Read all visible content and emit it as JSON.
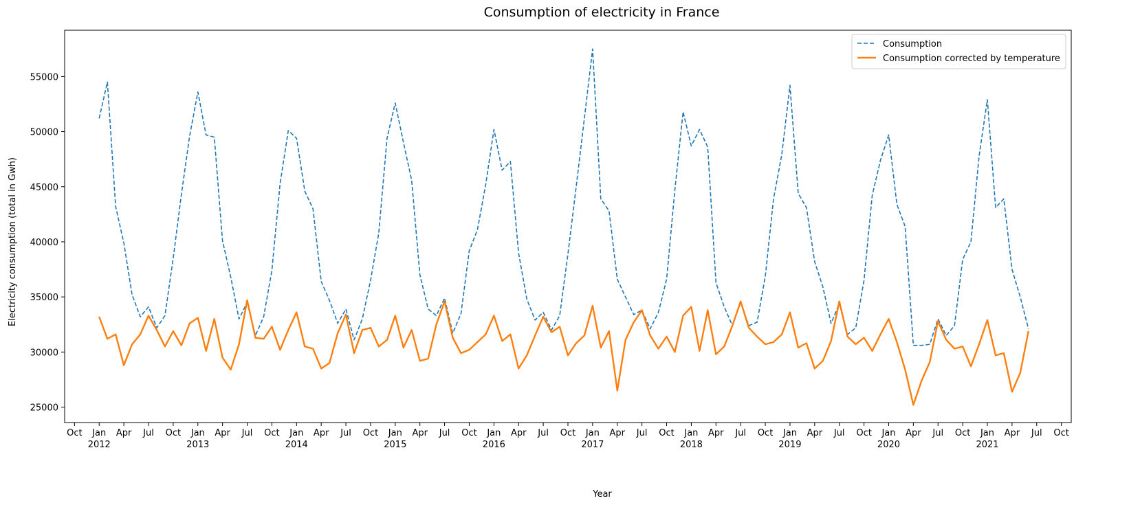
{
  "chart_data": {
    "type": "line",
    "title": "Consumption of electricity in France",
    "xlabel": "Year",
    "ylabel": "Electricity consumption (total in Gwh)",
    "ylim": [
      23600,
      59200
    ],
    "xlim": [
      "2011-10",
      "2021-10"
    ],
    "yticks": [
      25000,
      30000,
      35000,
      40000,
      45000,
      50000,
      55000
    ],
    "xticks": [
      {
        "month": "Oct",
        "year": ""
      },
      {
        "month": "Jan",
        "year": "2012"
      },
      {
        "month": "Apr",
        "year": ""
      },
      {
        "month": "Jul",
        "year": ""
      },
      {
        "month": "Oct",
        "year": ""
      },
      {
        "month": "Jan",
        "year": "2013"
      },
      {
        "month": "Apr",
        "year": ""
      },
      {
        "month": "Jul",
        "year": ""
      },
      {
        "month": "Oct",
        "year": ""
      },
      {
        "month": "Jan",
        "year": "2014"
      },
      {
        "month": "Apr",
        "year": ""
      },
      {
        "month": "Jul",
        "year": ""
      },
      {
        "month": "Oct",
        "year": ""
      },
      {
        "month": "Jan",
        "year": "2015"
      },
      {
        "month": "Apr",
        "year": ""
      },
      {
        "month": "Jul",
        "year": ""
      },
      {
        "month": "Oct",
        "year": ""
      },
      {
        "month": "Jan",
        "year": "2016"
      },
      {
        "month": "Apr",
        "year": ""
      },
      {
        "month": "Jul",
        "year": ""
      },
      {
        "month": "Oct",
        "year": ""
      },
      {
        "month": "Jan",
        "year": "2017"
      },
      {
        "month": "Apr",
        "year": ""
      },
      {
        "month": "Jul",
        "year": ""
      },
      {
        "month": "Oct",
        "year": ""
      },
      {
        "month": "Jan",
        "year": "2018"
      },
      {
        "month": "Apr",
        "year": ""
      },
      {
        "month": "Jul",
        "year": ""
      },
      {
        "month": "Oct",
        "year": ""
      },
      {
        "month": "Jan",
        "year": "2019"
      },
      {
        "month": "Apr",
        "year": ""
      },
      {
        "month": "Jul",
        "year": ""
      },
      {
        "month": "Oct",
        "year": ""
      },
      {
        "month": "Jan",
        "year": "2020"
      },
      {
        "month": "Apr",
        "year": ""
      },
      {
        "month": "Jul",
        "year": ""
      },
      {
        "month": "Oct",
        "year": ""
      },
      {
        "month": "Jan",
        "year": "2021"
      },
      {
        "month": "Apr",
        "year": ""
      },
      {
        "month": "Jul",
        "year": ""
      },
      {
        "month": "Oct",
        "year": ""
      }
    ],
    "x_start": "2012-01",
    "legend_position": "top-right",
    "grid": false,
    "series": [
      {
        "name": "Consumption",
        "color": "#1f77b4",
        "style": "dashed",
        "values": [
          51200,
          54500,
          43200,
          39900,
          35200,
          33200,
          34100,
          32200,
          33300,
          38500,
          44300,
          49600,
          53600,
          49700,
          49500,
          40100,
          36800,
          33000,
          34500,
          31500,
          33200,
          37400,
          45300,
          50100,
          49400,
          44600,
          43000,
          36400,
          34700,
          32600,
          33900,
          31100,
          33000,
          36500,
          40800,
          49400,
          52600,
          49000,
          45600,
          37000,
          33900,
          33300,
          34900,
          31700,
          33500,
          39200,
          41100,
          45200,
          50200,
          46500,
          47300,
          39000,
          34800,
          32900,
          33600,
          32000,
          33300,
          38900,
          45000,
          51200,
          57500,
          43900,
          42800,
          36600,
          35000,
          33400,
          33800,
          32100,
          33600,
          36600,
          44700,
          51800,
          48700,
          50200,
          48600,
          36300,
          34100,
          32400,
          34500,
          32400,
          32700,
          36900,
          43900,
          47900,
          54200,
          44400,
          43100,
          38200,
          35900,
          32600,
          34400,
          31600,
          32200,
          36500,
          44200,
          47400,
          49700,
          43400,
          41400,
          30600,
          30600,
          30700,
          33000,
          31500,
          32400,
          38400,
          40000,
          47800,
          52900,
          43100,
          43900,
          37500,
          35000,
          32100
        ]
      },
      {
        "name": "Consumption corrected by temperature",
        "color": "#ff7f0e",
        "style": "solid",
        "values": [
          33200,
          31200,
          31600,
          28800,
          30700,
          31600,
          33300,
          32000,
          30500,
          31900,
          30600,
          32600,
          33100,
          30100,
          33000,
          29500,
          28400,
          30700,
          34700,
          31300,
          31200,
          32300,
          30200,
          32000,
          33600,
          30500,
          30300,
          28500,
          29000,
          31700,
          33400,
          29900,
          32000,
          32200,
          30500,
          31100,
          33300,
          30400,
          32000,
          29200,
          29400,
          32500,
          34600,
          31300,
          29900,
          30200,
          30900,
          31600,
          33300,
          31000,
          31600,
          28500,
          29700,
          31500,
          33200,
          31800,
          32300,
          29700,
          30800,
          31500,
          34200,
          30400,
          31900,
          26500,
          31100,
          32700,
          33800,
          31500,
          30300,
          31400,
          30000,
          33300,
          34100,
          30100,
          33800,
          29800,
          30500,
          32400,
          34600,
          32200,
          31400,
          30700,
          30900,
          31600,
          33600,
          30400,
          30800,
          28500,
          29200,
          31000,
          34600,
          31400,
          30700,
          31300,
          30100,
          31600,
          33000,
          30900,
          28400,
          25200,
          27400,
          29100,
          32800,
          31100,
          30300,
          30500,
          28700,
          30700,
          32900,
          29700,
          29900,
          26400,
          28100,
          31900
        ]
      }
    ]
  }
}
